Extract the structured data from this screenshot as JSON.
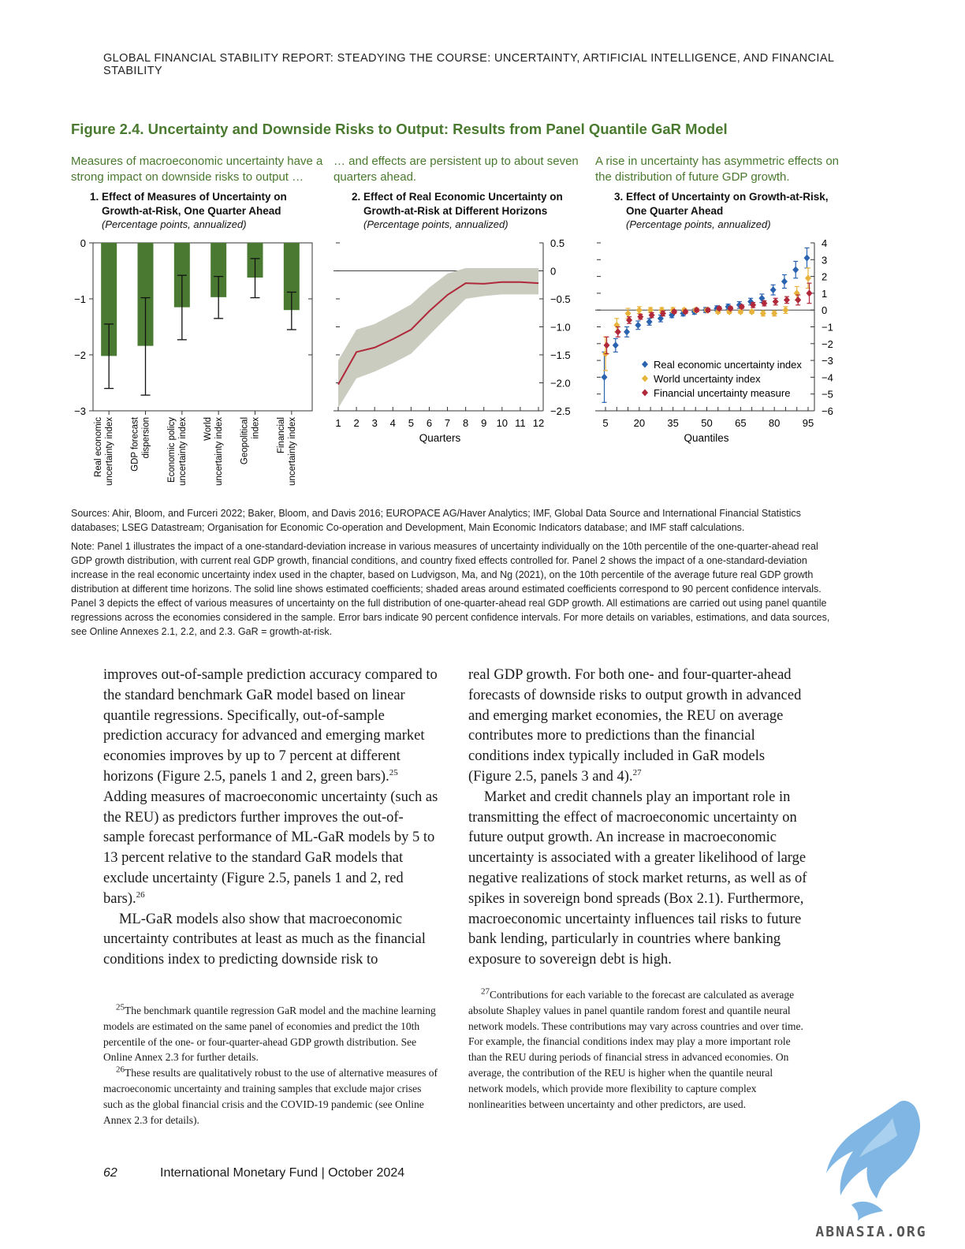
{
  "header": {
    "running_head": "GLOBAL FINANCIAL STABILITY REPORT: STEADYING THE COURSE: UNCERTAINTY, ARTIFICIAL INTELLIGENCE, AND FINANCIAL STABILITY"
  },
  "figure": {
    "title": "Figure 2.4. Uncertainty and Downside Risks to Output: Results from Panel Quantile GaR Model",
    "panels": [
      {
        "lead": "Measures of macroeconomic uncertainty have a strong impact on downside risks to output …",
        "title_line1": "1. Effect of Measures of Uncertainty on",
        "title_line2": "Growth-at-Risk, One Quarter Ahead",
        "unit": "(Percentage points, annualized)"
      },
      {
        "lead": "… and effects are persistent up to about seven quarters ahead.",
        "title_line1": "2. Effect of Real Economic Uncertainty on",
        "title_line2": "Growth-at-Risk at Different Horizons",
        "unit": "(Percentage points, annualized)"
      },
      {
        "lead": "A rise in uncertainty has asymmetric effects on the distribution of future GDP growth.",
        "title_line1": "3. Effect of Uncertainty on Growth-at-Risk,",
        "title_line2": "One Quarter Ahead",
        "unit": "(Percentage points, annualized)"
      }
    ],
    "sources": "Sources: Ahir, Bloom, and Furceri 2022; Baker, Bloom, and Davis 2016; EUROPACE AG/Haver Analytics; IMF, Global Data Source and International Financial Statistics databases; LSEG Datastream; Organisation for Economic Co-operation and Development, Main Economic Indicators database; and IMF staff calculations.",
    "note": "Note: Panel 1 illustrates the impact of a one-standard-deviation increase in various measures of uncertainty individually on the 10th percentile of the one-quarter-ahead real GDP growth distribution, with current real GDP growth, financial conditions, and country fixed effects controlled for. Panel 2 shows the impact of a one-standard-deviation increase in the real economic uncertainty index used in the chapter, based on Ludvigson, Ma, and Ng (2021), on the 10th percentile of the average future real GDP growth distribution at different time horizons. The solid line shows estimated coefficients; shaded areas around estimated coefficients correspond to 90 percent confidence intervals. Panel 3 depicts the effect of various measures of uncertainty on the full distribution of one-quarter-ahead real GDP growth. All estimations are carried out using panel quantile regressions across the economies considered in the sample. Error bars indicate 90 percent confidence intervals. For more details on variables, estimations, and data sources, see Online Annexes 2.1, 2.2, and 2.3. GaR = growth-at-risk."
  },
  "chart_data": [
    {
      "type": "bar",
      "categories": [
        [
          "Real economic",
          "uncertainty index"
        ],
        [
          "GDP forecast",
          "dispersion"
        ],
        [
          "Economic policy",
          "uncertainty index"
        ],
        [
          "World",
          "uncertainty index"
        ],
        [
          "Geopolitical",
          "index"
        ],
        [
          "Financial",
          "uncertainty index"
        ]
      ],
      "values": [
        -2.02,
        -1.84,
        -1.15,
        -0.97,
        -0.62,
        -1.2
      ],
      "ci_low": [
        -2.6,
        -2.72,
        -1.73,
        -1.35,
        -0.98,
        -1.55
      ],
      "ci_high": [
        -1.45,
        -0.98,
        -0.58,
        -0.6,
        -0.28,
        -0.88
      ],
      "ylim": [
        -3,
        0
      ],
      "yticks": [
        "0",
        "−1",
        "−2",
        "−3"
      ],
      "colors": {
        "bar": "#4a7a32"
      }
    },
    {
      "type": "line",
      "x": [
        1,
        2,
        3,
        4,
        5,
        6,
        7,
        8,
        9,
        10,
        11,
        12
      ],
      "xticks": [
        "1",
        "2",
        "3",
        "4",
        "5",
        "6",
        "7",
        "8",
        "9",
        "10",
        "11",
        "12"
      ],
      "xlabel": "Quarters",
      "values": [
        -2.03,
        -1.45,
        -1.37,
        -1.22,
        -1.05,
        -0.72,
        -0.43,
        -0.22,
        -0.23,
        -0.2,
        -0.2,
        -0.22
      ],
      "band_low": [
        -2.45,
        -1.92,
        -1.8,
        -1.65,
        -1.48,
        -1.15,
        -0.82,
        -0.5,
        -0.45,
        -0.42,
        -0.42,
        -0.42
      ],
      "band_high": [
        -1.6,
        -1.05,
        -0.95,
        -0.78,
        -0.6,
        -0.3,
        -0.05,
        0.05,
        0.05,
        0.05,
        0.05,
        0.05
      ],
      "ylim": [
        -2.5,
        0.5
      ],
      "yticks": [
        "0.5",
        "0",
        "−0.5",
        "−1.0",
        "−1.5",
        "−2.0",
        "−2.5"
      ],
      "colors": {
        "line": "#b0283a",
        "band": "#c9ccbf"
      }
    },
    {
      "type": "scatter",
      "x": [
        5,
        10,
        15,
        20,
        25,
        30,
        35,
        40,
        45,
        50,
        55,
        60,
        65,
        70,
        75,
        80,
        85,
        90,
        95
      ],
      "xticks": [
        "5",
        "20",
        "35",
        "50",
        "65",
        "80",
        "95"
      ],
      "xlabel": "Quantiles",
      "ylim": [
        -6,
        4
      ],
      "yticks": [
        "4",
        "3",
        "2",
        "1",
        "0",
        "−1",
        "−2",
        "−3",
        "−4",
        "−5",
        "−6"
      ],
      "legend_position": "bottom-right",
      "series": [
        {
          "name": "Real economic uncertainty index",
          "color": "#2a63b0",
          "values": [
            -4.0,
            -2.1,
            -1.3,
            -0.9,
            -0.7,
            -0.5,
            -0.3,
            -0.2,
            -0.1,
            0.0,
            0.1,
            0.2,
            0.3,
            0.5,
            0.7,
            1.2,
            1.7,
            2.4,
            3.1
          ],
          "err": [
            1.5,
            0.4,
            0.3,
            0.25,
            0.2,
            0.2,
            0.15,
            0.15,
            0.15,
            0.15,
            0.15,
            0.15,
            0.2,
            0.2,
            0.25,
            0.3,
            0.4,
            0.5,
            0.6
          ]
        },
        {
          "name": "World uncertainty index",
          "color": "#e8b33a",
          "values": [
            -2.6,
            -0.9,
            -0.2,
            0.0,
            0.0,
            0.0,
            0.0,
            0.0,
            0.0,
            0.0,
            -0.1,
            -0.1,
            -0.1,
            -0.1,
            -0.2,
            -0.2,
            0.0,
            1.0,
            1.9
          ],
          "err": [
            1.0,
            0.4,
            0.3,
            0.2,
            0.15,
            0.15,
            0.15,
            0.1,
            0.1,
            0.1,
            0.1,
            0.1,
            0.1,
            0.1,
            0.15,
            0.15,
            0.2,
            0.4,
            0.6
          ]
        },
        {
          "name": "Financial uncertainty measure",
          "color": "#b0283a",
          "values": [
            -2.1,
            -1.3,
            -0.6,
            -0.4,
            -0.3,
            -0.2,
            -0.1,
            -0.1,
            0.0,
            0.0,
            0.1,
            0.1,
            0.2,
            0.3,
            0.4,
            0.5,
            0.6,
            0.6,
            1.0
          ],
          "err": [
            0.5,
            0.3,
            0.2,
            0.15,
            0.15,
            0.15,
            0.1,
            0.1,
            0.1,
            0.1,
            0.1,
            0.1,
            0.1,
            0.15,
            0.15,
            0.2,
            0.2,
            0.3,
            0.6
          ]
        }
      ]
    }
  ],
  "body": {
    "left": [
      {
        "text": "improves out-of-sample prediction accuracy compared to the standard benchmark GaR model based on linear quantile regressions. Specifically, out-of-sample prediction accuracy for advanced and emerging market economies improves by up to 7 percent at different horizons (Figure 2.5, panels 1 and 2, green bars).",
        "sup": "25",
        "tail": ""
      },
      {
        "text": "Adding measures of macroeconomic uncertainty (such as the REU) as predictors further improves the out-of-sample forecast performance of ML-GaR models by 5 to 13 percent relative to the standard GaR models that exclude uncertainty (Figure 2.5, panels 1 and 2, red bars).",
        "sup": "26",
        "tail": ""
      },
      {
        "text": "ML-GaR models also show that macroeconomic uncertainty contributes at least as much as the financial conditions index to predicting downside risk to",
        "sup": "",
        "tail": ""
      }
    ],
    "right": [
      {
        "text": "real GDP growth. For both one- and four-quarter-ahead forecasts of downside risks to output growth in advanced and emerging market economies, the REU on average contributes more to predictions than the financial conditions index typically included in GaR models (Figure 2.5, panels 3 and 4).",
        "sup": "27",
        "tail": ""
      },
      {
        "text": "Market and credit channels play an important role in transmitting the effect of macroeconomic uncertainty on future output growth. An increase in macroeconomic uncertainty is associated with a greater likelihood of large negative realizations of stock market returns, as well as of spikes in sovereign bond spreads (Box 2.1). Furthermore, macroeconomic uncertainty influences tail risks to future bank lending, particularly in countries where banking exposure to sovereign debt is high.",
        "sup": "",
        "tail": ""
      }
    ]
  },
  "footnotes": {
    "fn25_num": "25",
    "fn25": "The benchmark quantile regression GaR model and the machine learning models are estimated on the same panel of economies and predict the 10th percentile of the one- or four-quarter-ahead GDP growth distribution. See Online Annex 2.3 for further details.",
    "fn26_num": "26",
    "fn26": "These results are qualitatively robust to the use of alternative measures of macroeconomic uncertainty and training samples that exclude major crises such as the global financial crisis and the COVID-19 pandemic (see Online Annex 2.3 for details).",
    "fn27_num": "27",
    "fn27": "Contributions for each variable to the forecast are calculated as average absolute Shapley values in panel quantile random forest and quantile neural network models. These contributions may vary across countries and over time. For example, the financial conditions index may play a more important role than the REU during periods of financial stress in advanced economies. On average, the contribution of the REU is higher when the quantile neural network models, which provide more flexibility to capture complex nonlinearities between uncertainty and other predictors, are used."
  },
  "footer": {
    "page_number": "62",
    "source": "International Monetary Fund | October 2024"
  },
  "watermark": {
    "text": "ABNASIA.ORG",
    "icon": "griffin-logo-icon"
  }
}
